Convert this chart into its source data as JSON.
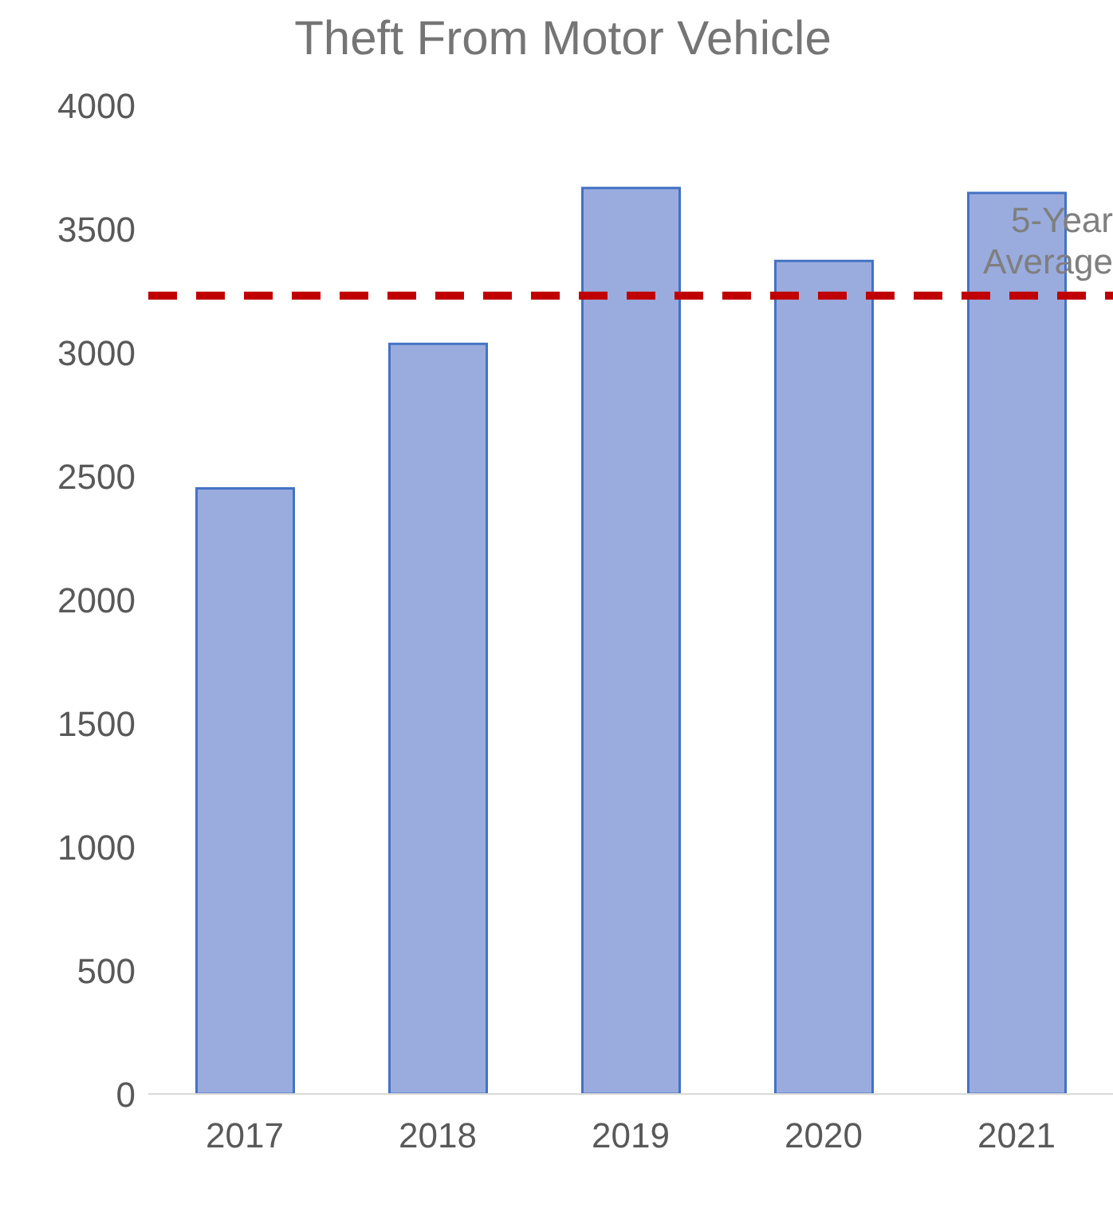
{
  "chart_data": {
    "type": "bar",
    "title": "Theft From Motor Vehicle",
    "categories": [
      "2017",
      "2018",
      "2019",
      "2020",
      "2021"
    ],
    "values": [
      2450,
      3035,
      3665,
      3370,
      3645
    ],
    "color": "#9aacde",
    "ylim": [
      0,
      4000
    ],
    "yticks": [
      0,
      500,
      1000,
      1500,
      2000,
      2500,
      3000,
      3500,
      4000
    ],
    "grid": false,
    "ref_lines": [
      {
        "axis": "y",
        "value": 3230,
        "label": "5-Year Average",
        "color": "#c00000",
        "line_style": "dashed"
      }
    ]
  }
}
